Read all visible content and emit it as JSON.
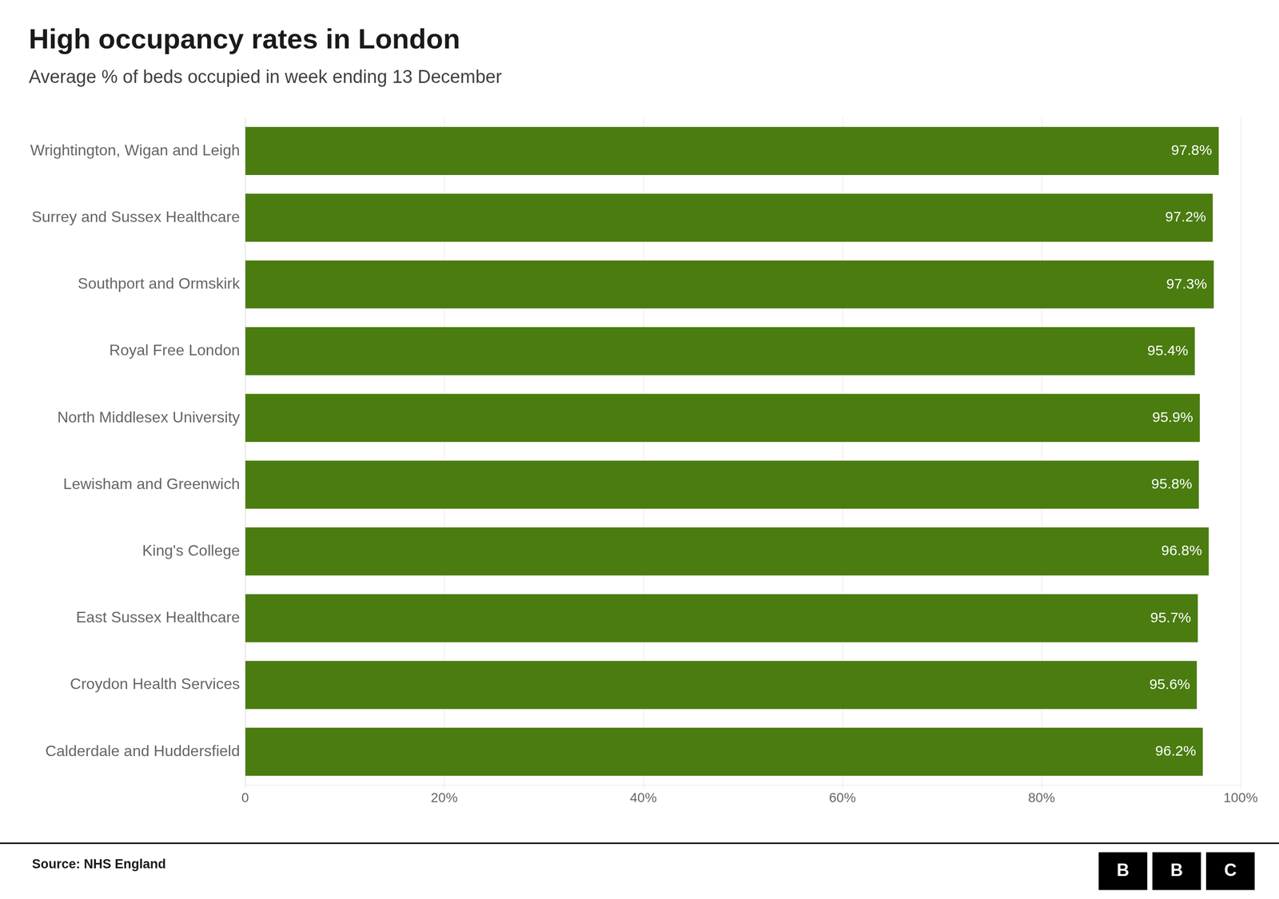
{
  "chart_data": {
    "type": "bar",
    "orientation": "horizontal",
    "title": "High occupancy rates in London",
    "subtitle": "Average % of beds occupied in week ending 13 December",
    "annotations": [
      "Source: NHS England",
      "BBC"
    ],
    "categories": [
      "Wrightington, Wigan and Leigh",
      "Surrey and Sussex Healthcare",
      "Southport and Ormskirk",
      "Royal Free London",
      "North Middlesex University",
      "Lewisham and Greenwich",
      "King's College",
      "East Sussex Healthcare",
      "Croydon Health Services",
      "Calderdale and Huddersfield"
    ],
    "values": [
      97.8,
      97.2,
      97.3,
      95.4,
      95.9,
      95.8,
      96.8,
      95.7,
      95.6,
      96.2
    ],
    "value_labels": [
      "97.8%",
      "97.2%",
      "97.3%",
      "95.4%",
      "95.9%",
      "95.8%",
      "96.8%",
      "95.7%",
      "95.6%",
      "96.2%"
    ],
    "data_labels": true,
    "color": "#4a7c10",
    "xlim": [
      0,
      100
    ],
    "xticks": [
      0,
      {
        "value": 20,
        "label": "20%"
      },
      {
        "value": 40,
        "label": "40%"
      },
      {
        "value": 60,
        "label": "60%"
      },
      {
        "value": 80,
        "label": "80%"
      },
      {
        "value": 100,
        "label": "100%"
      }
    ],
    "grid": true
  }
}
